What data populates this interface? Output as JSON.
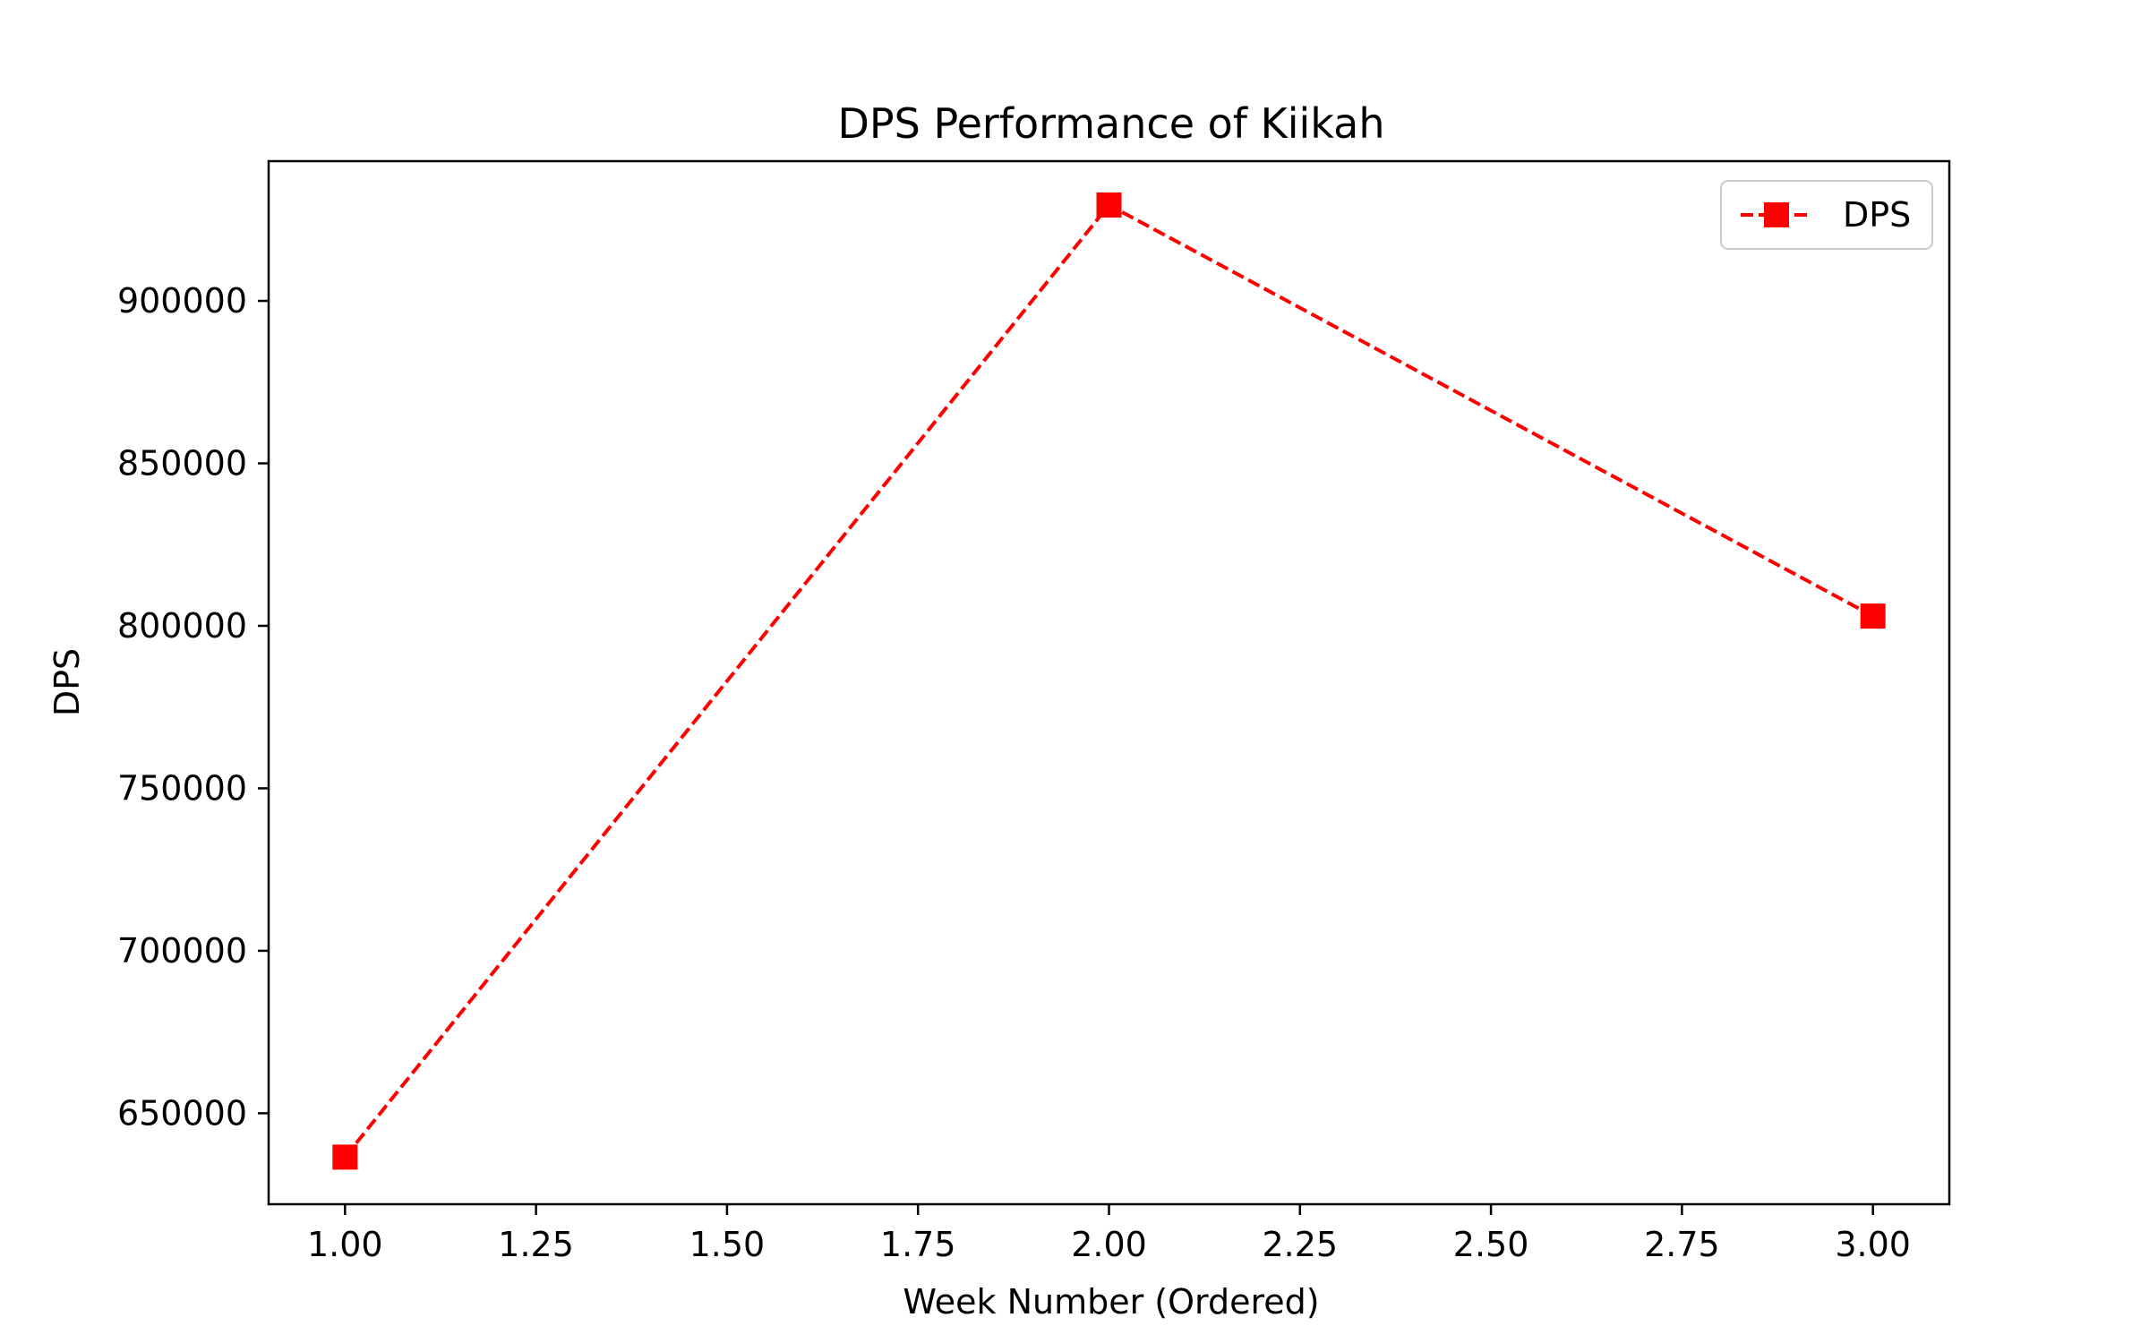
{
  "chart_data": {
    "type": "line",
    "title": "DPS Performance of Kiikah",
    "xlabel": "Week Number (Ordered)",
    "ylabel": "DPS",
    "x": [
      1,
      2,
      3
    ],
    "xlim": [
      0.9,
      3.1
    ],
    "ylim": [
      622000,
      943000
    ],
    "xticks": [
      1.0,
      1.25,
      1.5,
      1.75,
      2.0,
      2.25,
      2.5,
      2.75,
      3.0
    ],
    "xtick_labels": [
      "1.00",
      "1.25",
      "1.50",
      "1.75",
      "2.00",
      "2.25",
      "2.50",
      "2.75",
      "3.00"
    ],
    "yticks": [
      650000,
      700000,
      750000,
      800000,
      850000,
      900000
    ],
    "ytick_labels": [
      "650000",
      "700000",
      "750000",
      "800000",
      "850000",
      "900000"
    ],
    "grid": false,
    "legend_position": "top-right",
    "series": [
      {
        "name": "DPS",
        "values": [
          636500,
          929500,
          803000
        ],
        "color": "#ff0000",
        "line_style": "dashed",
        "marker": "square"
      }
    ]
  }
}
